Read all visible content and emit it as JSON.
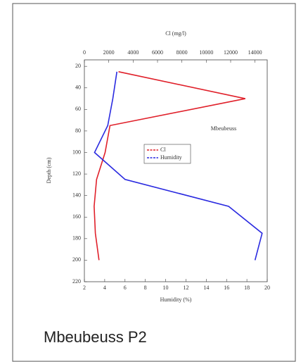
{
  "chart_data": {
    "type": "line",
    "x_label": "Humidity (%)",
    "x2_label": "Cl (mg/l)",
    "y_label": "Depth (cm)",
    "annotation": "Mbeubeuss",
    "caption": "Mbeubeuss P2",
    "depth": [
      25,
      50,
      75,
      100,
      125,
      150,
      175,
      200
    ],
    "series": [
      {
        "name": "Cl",
        "color": "#e0202a",
        "axis": "x2",
        "values": [
          2800,
          13200,
          2100,
          1700,
          1000,
          800,
          900,
          1200
        ]
      },
      {
        "name": "Humidity",
        "color": "#2a2ae0",
        "axis": "x",
        "values": [
          5.2,
          4.8,
          4.3,
          3,
          6,
          16.2,
          19.5,
          18.8
        ]
      }
    ],
    "xlim": [
      2,
      20
    ],
    "xticks": [
      2,
      4,
      6,
      8,
      10,
      12,
      14,
      16,
      18,
      20
    ],
    "x2lim": [
      0,
      15000
    ],
    "x2ticks": [
      0,
      2000,
      4000,
      6000,
      8000,
      10000,
      12000,
      14000
    ],
    "ylim": [
      14,
      220
    ],
    "yticks": [
      20,
      40,
      60,
      80,
      100,
      120,
      140,
      160,
      180,
      200,
      220
    ],
    "legend": "center"
  }
}
